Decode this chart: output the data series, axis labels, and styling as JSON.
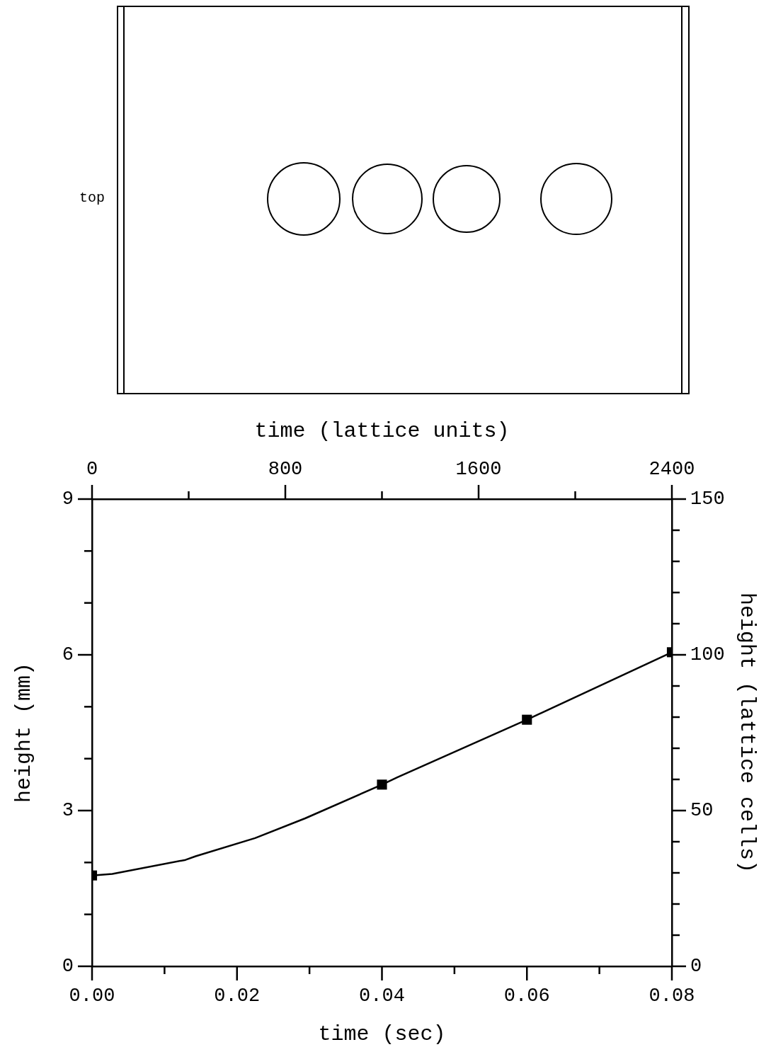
{
  "chart_data": {
    "type": "line",
    "xlabel": "time (sec)",
    "x2label": "time (lattice units)",
    "ylabel": "height (mm)",
    "y2label": "height (lattice cells)",
    "xlim": [
      0,
      0.08
    ],
    "xticks": [
      {
        "value": 0,
        "label": "0.00"
      },
      {
        "value": 0.01,
        "label": null
      },
      {
        "value": 0.02,
        "label": "0.02"
      },
      {
        "value": 0.03,
        "label": null
      },
      {
        "value": 0.04,
        "label": "0.04"
      },
      {
        "value": 0.05,
        "label": null
      },
      {
        "value": 0.06,
        "label": "0.06"
      },
      {
        "value": 0.07,
        "label": null
      },
      {
        "value": 0.08,
        "label": "0.08"
      }
    ],
    "x2lim": [
      0,
      2400
    ],
    "x2ticks": [
      0,
      {
        "value": 400,
        "label": null
      },
      800,
      {
        "value": 1200,
        "label": null
      },
      1600,
      {
        "value": 2000,
        "label": null
      },
      2400
    ],
    "ylim": [
      0,
      9
    ],
    "yticks": [
      0,
      {
        "value": 1,
        "label": null
      },
      {
        "value": 2,
        "label": null
      },
      3,
      {
        "value": 4,
        "label": null
      },
      {
        "value": 5,
        "label": null
      },
      6,
      {
        "value": 7,
        "label": null
      },
      {
        "value": 8,
        "label": null
      },
      9
    ],
    "y2lim": [
      0,
      150
    ],
    "y2ticks": [
      0,
      {
        "value": 10,
        "label": null
      },
      {
        "value": 20,
        "label": null
      },
      {
        "value": 30,
        "label": null
      },
      {
        "value": 40,
        "label": null
      },
      50,
      {
        "value": 60,
        "label": null
      },
      {
        "value": 70,
        "label": null
      },
      {
        "value": 80,
        "label": null
      },
      {
        "value": 90,
        "label": null
      },
      100,
      {
        "value": 110,
        "label": null
      },
      {
        "value": 120,
        "label": null
      },
      {
        "value": 130,
        "label": null
      },
      {
        "value": 140,
        "label": null
      },
      150
    ],
    "series": [
      {
        "type": "line",
        "color": "#000000",
        "marker": "none",
        "x": [
          0,
          0.0028,
          0.0129,
          0.0143,
          0.0225,
          0.0294,
          0.04,
          0.0421,
          0.06,
          0.08
        ],
        "values": [
          1.75,
          1.78,
          2.05,
          2.12,
          2.47,
          2.85,
          3.5,
          3.64,
          4.75,
          6.05
        ]
      },
      {
        "type": "scatter",
        "color": "#000000",
        "marker": "square",
        "x": [
          0,
          0.04,
          0.06,
          0.08
        ],
        "values": [
          1.75,
          3.5,
          4.75,
          6.05
        ]
      }
    ],
    "annotations": [
      "top"
    ]
  }
}
